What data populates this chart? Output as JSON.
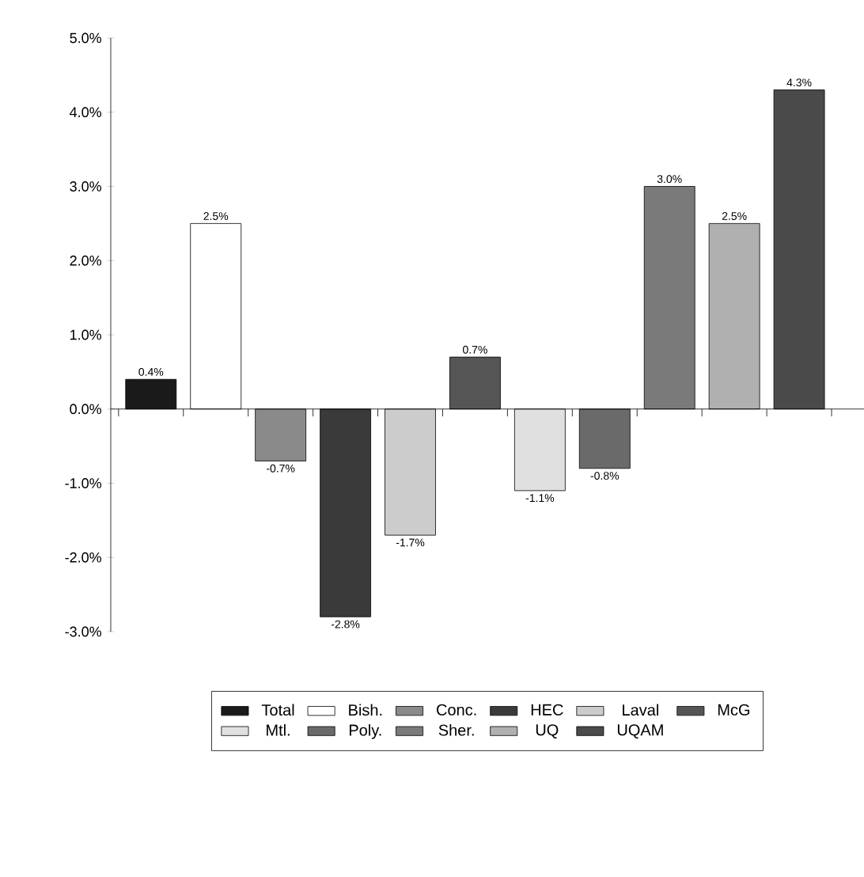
{
  "chart_data": {
    "type": "bar",
    "categories": [
      null,
      null,
      null,
      null,
      null,
      null,
      null,
      null,
      null,
      null,
      null
    ],
    "ylim": [
      -3,
      5
    ],
    "yticks": [
      {
        "value": -3,
        "label": "-3.0%"
      },
      {
        "value": -2,
        "label": "-2.0%"
      },
      {
        "value": -1,
        "label": "-1.0%"
      },
      {
        "value": 0,
        "label": "0.0%"
      },
      {
        "value": 1,
        "label": "1.0%"
      },
      {
        "value": 2,
        "label": "2.0%"
      },
      {
        "value": 3,
        "label": "3.0%"
      },
      {
        "value": 4,
        "label": "4.0%"
      },
      {
        "value": 5,
        "label": "5.0%"
      }
    ],
    "tick_labels": "y",
    "legend": "bottom",
    "series": [
      {
        "name": "Total",
        "color": "#1a1a1a",
        "values": [
          0.4,
          null,
          null,
          null,
          null,
          null,
          null,
          null,
          null,
          null,
          null
        ],
        "value_labels": [
          "0.4%",
          null,
          null,
          null,
          null,
          null,
          null,
          null,
          null,
          null,
          null
        ]
      },
      {
        "name": "Bish.",
        "color": "#ffffff",
        "values": [
          null,
          2.5,
          null,
          null,
          null,
          null,
          null,
          null,
          null,
          null,
          null
        ],
        "value_labels": [
          null,
          "2.5%",
          null,
          null,
          null,
          null,
          null,
          null,
          null,
          null,
          null
        ]
      },
      {
        "name": "Conc.",
        "color": "#8a8a8a",
        "values": [
          null,
          null,
          -0.7,
          null,
          null,
          null,
          null,
          null,
          null,
          null,
          null
        ],
        "value_labels": [
          null,
          null,
          "-0.7%",
          null,
          null,
          null,
          null,
          null,
          null,
          null,
          null
        ]
      },
      {
        "name": "HEC",
        "color": "#3a3a3a",
        "values": [
          null,
          null,
          null,
          -2.8,
          null,
          null,
          null,
          null,
          null,
          null,
          null
        ],
        "value_labels": [
          null,
          null,
          null,
          "-2.8%",
          null,
          null,
          null,
          null,
          null,
          null,
          null
        ]
      },
      {
        "name": "Laval",
        "color": "#cccccc",
        "values": [
          null,
          null,
          null,
          null,
          -1.7,
          null,
          null,
          null,
          null,
          null,
          null
        ],
        "value_labels": [
          null,
          null,
          null,
          null,
          "-1.7%",
          null,
          null,
          null,
          null,
          null,
          null
        ]
      },
      {
        "name": "McG",
        "color": "#555555",
        "values": [
          null,
          null,
          null,
          null,
          null,
          0.7,
          null,
          null,
          null,
          null,
          null
        ],
        "value_labels": [
          null,
          null,
          null,
          null,
          null,
          "0.7%",
          null,
          null,
          null,
          null,
          null
        ]
      },
      {
        "name": "Mtl.",
        "color": "#e0e0e0",
        "values": [
          null,
          null,
          null,
          null,
          null,
          null,
          -1.1,
          null,
          null,
          null,
          null
        ],
        "value_labels": [
          null,
          null,
          null,
          null,
          null,
          null,
          "-1.1%",
          null,
          null,
          null,
          null
        ]
      },
      {
        "name": "Poly.",
        "color": "#6a6a6a",
        "values": [
          null,
          null,
          null,
          null,
          null,
          null,
          null,
          -0.8,
          null,
          null,
          null
        ],
        "value_labels": [
          null,
          null,
          null,
          null,
          null,
          null,
          null,
          "-0.8%",
          null,
          null,
          null
        ]
      },
      {
        "name": "Sher.",
        "color": "#7a7a7a",
        "values": [
          null,
          null,
          null,
          null,
          null,
          null,
          null,
          null,
          3.0,
          null,
          null
        ],
        "value_labels": [
          null,
          null,
          null,
          null,
          null,
          null,
          null,
          null,
          "3.0%",
          null,
          null
        ]
      },
      {
        "name": "UQ",
        "color": "#b0b0b0",
        "values": [
          null,
          null,
          null,
          null,
          null,
          null,
          null,
          null,
          null,
          2.5,
          null
        ],
        "value_labels": [
          null,
          null,
          null,
          null,
          null,
          null,
          null,
          null,
          null,
          "2.5%",
          null
        ]
      },
      {
        "name": "UQAM",
        "color": "#4a4a4a",
        "values": [
          null,
          null,
          null,
          null,
          null,
          null,
          null,
          null,
          null,
          null,
          4.3
        ],
        "value_labels": [
          null,
          null,
          null,
          null,
          null,
          null,
          null,
          null,
          null,
          null,
          "4.3%"
        ]
      }
    ]
  }
}
